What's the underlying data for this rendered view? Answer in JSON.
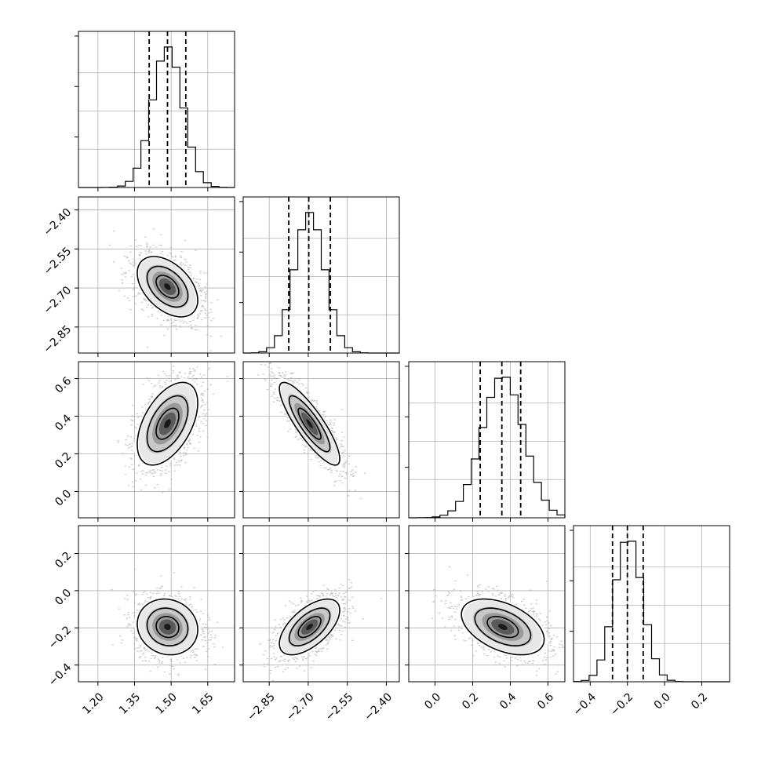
{
  "chart_data": {
    "type": "corner",
    "parameters": [
      {
        "mean": 1.485,
        "sd": 0.062,
        "range": [
          1.12,
          1.76
        ],
        "ticks": [
          1.2,
          1.35,
          1.5,
          1.65
        ],
        "tick_labels": [
          "1.20",
          "1.35",
          "1.50",
          "1.65"
        ],
        "quantiles": [
          1.41,
          1.485,
          1.56
        ]
      },
      {
        "mean": -2.695,
        "sd": 0.058,
        "range": [
          -2.95,
          -2.35
        ],
        "ticks": [
          -2.85,
          -2.7,
          -2.55,
          -2.4
        ],
        "tick_labels": [
          "−2.85",
          "−2.70",
          "−2.55",
          "−2.40"
        ],
        "quantiles": [
          -2.775,
          -2.698,
          -2.615
        ]
      },
      {
        "mean": 0.36,
        "sd": 0.11,
        "range": [
          -0.14,
          0.69
        ],
        "ticks": [
          0.0,
          0.2,
          0.4,
          0.6
        ],
        "tick_labels": [
          "0.0",
          "0.2",
          "0.4",
          "0.6"
        ],
        "quantiles": [
          0.24,
          0.355,
          0.455
        ]
      },
      {
        "mean": -0.195,
        "sd": 0.075,
        "range": [
          -0.49,
          0.35
        ],
        "ticks": [
          -0.4,
          -0.2,
          0.0,
          0.2
        ],
        "tick_labels": [
          "−0.4",
          "−0.2",
          "0.0",
          "0.2"
        ],
        "quantiles": [
          -0.28,
          -0.2,
          -0.115
        ]
      }
    ],
    "correlations": [
      [
        1,
        -0.45,
        0.5,
        -0.1
      ],
      [
        -0.45,
        1,
        -0.85,
        0.6
      ],
      [
        0.5,
        -0.85,
        1,
        -0.45
      ],
      [
        -0.1,
        0.6,
        -0.45,
        1
      ]
    ],
    "histogram_bins": 20,
    "contour_levels": 3
  }
}
